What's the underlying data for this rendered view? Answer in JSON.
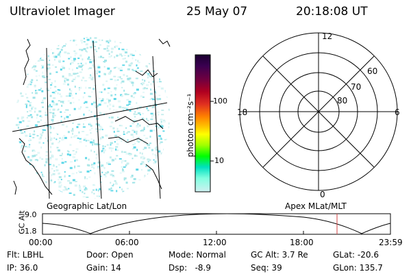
{
  "header": {
    "instrument": "Ultraviolet Imager",
    "date": "25 May 07",
    "time": "20:18:08 UT"
  },
  "colorbar": {
    "unit_label": "photon cm⁻²s⁻¹",
    "ticks": [
      "100",
      "10"
    ],
    "colors": [
      "#1a0030",
      "#3a0050",
      "#700040",
      "#b00020",
      "#e03020",
      "#ff8000",
      "#ffc000",
      "#ffff00",
      "#a0ff00",
      "#00ff00",
      "#00e0c0",
      "#80ffe0",
      "#d0f0f0"
    ]
  },
  "geo_panel": {
    "label": "Geographic Lat/Lon"
  },
  "polar_plot": {
    "label": "Apex MLat/MLT",
    "mlt_labels": {
      "top": "12",
      "left": "18",
      "right": "6",
      "bottom": "0"
    },
    "mlat_labels": [
      "60",
      "70",
      "80"
    ]
  },
  "alt_plot": {
    "ylabel": "GC Alt",
    "ymax": "9.0",
    "ymin": "1.8",
    "time_ticks": [
      "00:00",
      "06:00",
      "12:00",
      "18:00",
      "23:59"
    ]
  },
  "status": {
    "flt": "Flt: LBHL",
    "ip": "IP: 36.0",
    "door": "Door: Open",
    "gain": "Gain: 14",
    "mode": "Mode: Normal",
    "dsp": "Dsp:   -8.9",
    "gcalt": "GC Alt: 3.7 Re",
    "seq": "Seq: 39",
    "glat": "GLat: -20.6",
    "glon": "GLon: 135.7"
  }
}
